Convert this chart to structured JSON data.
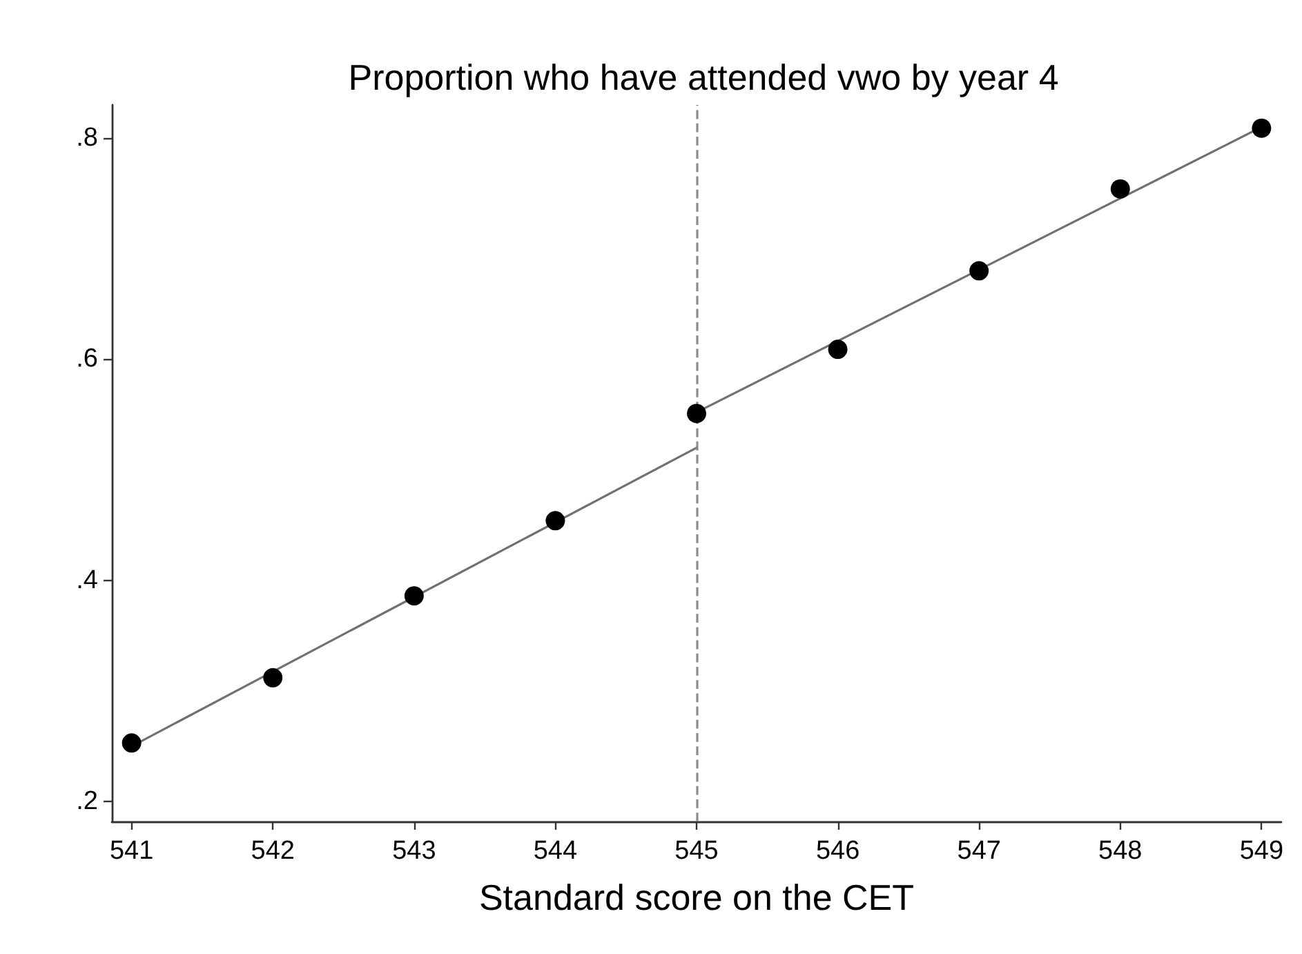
{
  "chart_data": {
    "type": "scatter",
    "title": "Proportion who have attended vwo by year 4",
    "xlabel": "Standard score on the CET",
    "xlim": [
      540.86,
      549.14
    ],
    "xticks": [
      541,
      542,
      543,
      544,
      545,
      546,
      547,
      548,
      549
    ],
    "ylim": [
      0.182,
      0.83
    ],
    "yticks": [
      {
        "value": 0.2,
        "label": ".2"
      },
      {
        "value": 0.4,
        "label": ".4"
      },
      {
        "value": 0.6,
        "label": ".6"
      },
      {
        "value": 0.8,
        "label": ".8"
      }
    ],
    "series": [
      {
        "color": "#000000",
        "marker": "circle",
        "x": [
          541,
          542,
          543,
          544,
          545,
          546,
          547,
          548,
          549
        ],
        "values": [
          0.253,
          0.312,
          0.386,
          0.454,
          0.551,
          0.609,
          0.68,
          0.754,
          0.809
        ]
      },
      {
        "type": "line",
        "color": "#707070",
        "marker": "none",
        "line_style": "solid",
        "x": [
          541,
          545
        ],
        "values": [
          0.25,
          0.52
        ]
      },
      {
        "type": "line",
        "color": "#707070",
        "marker": "none",
        "line_style": "solid",
        "x": [
          545,
          549
        ],
        "values": [
          0.552,
          0.81
        ]
      }
    ],
    "ref_lines": [
      {
        "axis": "x",
        "value": 545,
        "color": "#8c8c8c",
        "line_style": "dashed"
      }
    ]
  }
}
